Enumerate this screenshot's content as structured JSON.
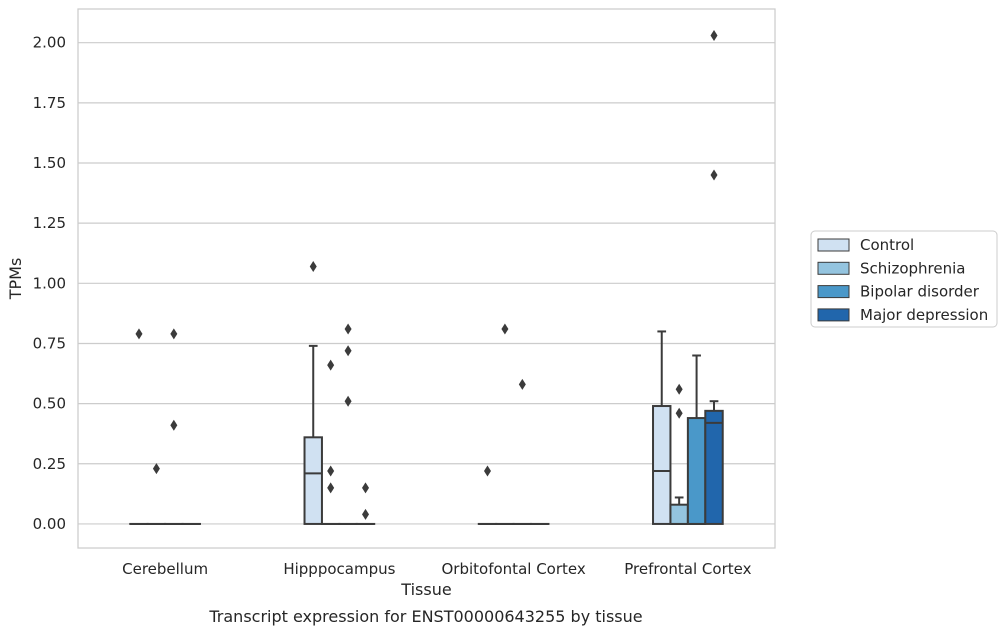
{
  "chart_data": {
    "type": "box",
    "caption": "Transcript expression for ENST00000643255 by tissue",
    "xlabel": "Tissue",
    "ylabel": "TPMs",
    "ylim": [
      -0.1,
      2.14
    ],
    "yticks": [
      0.0,
      0.25,
      0.5,
      0.75,
      1.0,
      1.25,
      1.5,
      1.75,
      2.0
    ],
    "ytick_labels": [
      "0.00",
      "0.25",
      "0.50",
      "0.75",
      "1.00",
      "1.25",
      "1.50",
      "1.75",
      "2.00"
    ],
    "grid": true,
    "legend_position": "right",
    "categories": [
      "Cerebellum",
      "Hipppocampus",
      "Orbitofontal Cortex",
      "Prefrontal Cortex"
    ],
    "series": [
      {
        "name": "Control",
        "color": "#d0e1f2",
        "boxes": [
          {
            "q1": 0,
            "median": 0,
            "q3": 0,
            "whisker_low": 0,
            "whisker_high": 0,
            "outliers": [
              0.79
            ]
          },
          {
            "q1": 0,
            "median": 0.21,
            "q3": 0.36,
            "whisker_low": 0,
            "whisker_high": 0.74,
            "outliers": [
              1.07
            ]
          },
          {
            "q1": 0,
            "median": 0,
            "q3": 0,
            "whisker_low": 0,
            "whisker_high": 0,
            "outliers": [
              0.22
            ]
          },
          {
            "q1": 0,
            "median": 0.22,
            "q3": 0.49,
            "whisker_low": 0,
            "whisker_high": 0.8,
            "outliers": []
          }
        ]
      },
      {
        "name": "Schizophrenia",
        "color": "#94c4df",
        "boxes": [
          {
            "q1": 0,
            "median": 0,
            "q3": 0,
            "whisker_low": 0,
            "whisker_high": 0,
            "outliers": [
              0.23
            ]
          },
          {
            "q1": 0,
            "median": 0,
            "q3": 0,
            "whisker_low": 0,
            "whisker_high": 0,
            "outliers": [
              0.66,
              0.22,
              0.15
            ]
          },
          {
            "q1": 0,
            "median": 0,
            "q3": 0,
            "whisker_low": 0,
            "whisker_high": 0,
            "outliers": [
              0.81
            ]
          },
          {
            "q1": 0,
            "median": 0,
            "q3": 0.08,
            "whisker_low": 0,
            "whisker_high": 0.11,
            "outliers": [
              0.56,
              0.46
            ]
          }
        ]
      },
      {
        "name": "Bipolar disorder",
        "color": "#4a98c9",
        "boxes": [
          {
            "q1": 0,
            "median": 0,
            "q3": 0,
            "whisker_low": 0,
            "whisker_high": 0,
            "outliers": [
              0.79,
              0.41
            ]
          },
          {
            "q1": 0,
            "median": 0,
            "q3": 0,
            "whisker_low": 0,
            "whisker_high": 0,
            "outliers": [
              0.81,
              0.72,
              0.51
            ]
          },
          {
            "q1": 0,
            "median": 0,
            "q3": 0,
            "whisker_low": 0,
            "whisker_high": 0,
            "outliers": [
              0.58
            ]
          },
          {
            "q1": 0,
            "median": 0,
            "q3": 0.44,
            "whisker_low": 0,
            "whisker_high": 0.7,
            "outliers": []
          }
        ]
      },
      {
        "name": "Major depression",
        "color": "#2166ac",
        "boxes": [
          {
            "q1": 0,
            "median": 0,
            "q3": 0,
            "whisker_low": 0,
            "whisker_high": 0,
            "outliers": []
          },
          {
            "q1": 0,
            "median": 0,
            "q3": 0,
            "whisker_low": 0,
            "whisker_high": 0,
            "outliers": [
              0.15,
              0.04
            ]
          },
          {
            "q1": 0,
            "median": 0,
            "q3": 0,
            "whisker_low": 0,
            "whisker_high": 0,
            "outliers": []
          },
          {
            "q1": 0,
            "median": 0.42,
            "q3": 0.47,
            "whisker_low": 0,
            "whisker_high": 0.51,
            "outliers": [
              2.03,
              1.45
            ]
          }
        ]
      }
    ]
  }
}
